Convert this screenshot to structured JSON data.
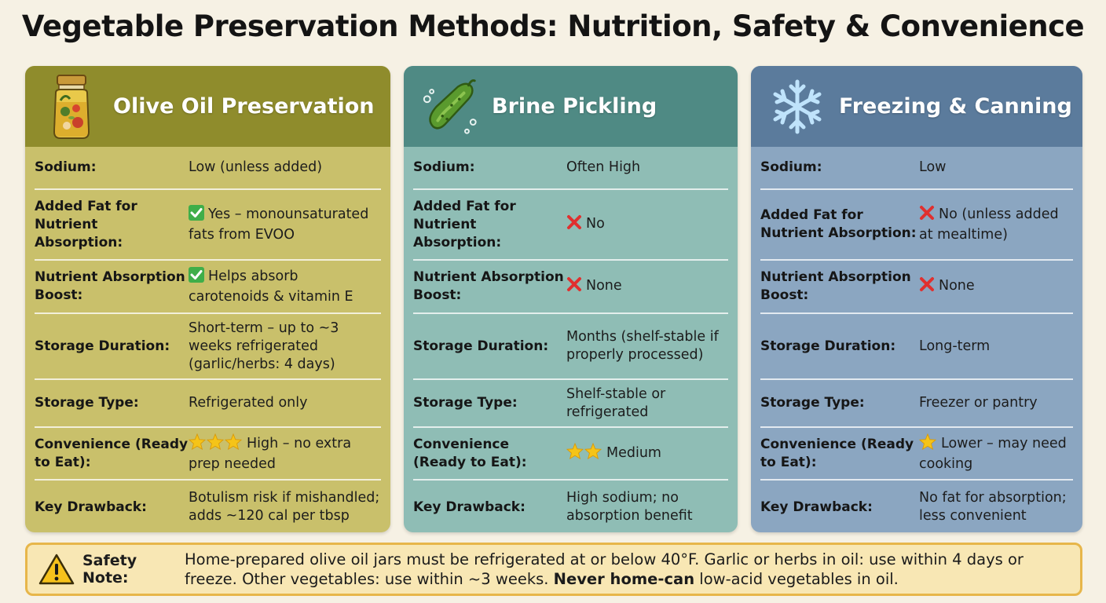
{
  "title": "Vegetable Preservation Methods: Nutrition, Safety & Convenience",
  "labels": {
    "sodium": "Sodium:",
    "added_fat": "Added Fat for Nutrient Absorption:",
    "boost": "Nutrient Absorption Boost:",
    "duration": "Storage Duration:",
    "type": "Storage Type:",
    "convenience": "Convenience (Ready to Eat):",
    "drawback": "Key Drawback:"
  },
  "cards": {
    "olive": {
      "title": "Olive Oil Preservation",
      "icon": "olive-oil-jar-icon",
      "header_color": "#8f8c2c",
      "body_color": "#c9c06b",
      "sodium": "Low (unless added)",
      "added_fat": "Yes – monounsaturated fats from EVOO",
      "added_fat_mark": "check",
      "boost": "Helps absorb carotenoids & vitamin E",
      "boost_mark": "check",
      "duration": "Short-term – up to ~3 weeks refrigerated (garlic/herbs: 4 days)",
      "type": "Refrigerated only",
      "convenience": "High – no extra prep needed",
      "convenience_stars": 3,
      "drawback": "Botulism risk if mishandled; adds ~120 cal per tbsp"
    },
    "brine": {
      "title": "Brine Pickling",
      "icon": "pickle-icon",
      "header_color": "#4f8a84",
      "body_color": "#8fbdb5",
      "sodium": "Often High",
      "added_fat": "No",
      "added_fat_mark": "cross",
      "boost": "None",
      "boost_mark": "cross",
      "duration": "Months (shelf-stable if properly processed)",
      "type": "Shelf-stable or refrigerated",
      "convenience": "Medium",
      "convenience_stars": 2,
      "drawback": "High sodium; no absorption benefit"
    },
    "freeze": {
      "title": "Freezing & Canning",
      "icon": "snowflake-icon",
      "header_color": "#5b7b9c",
      "body_color": "#8ba6c1",
      "sodium": "Low",
      "added_fat": "No (unless added at mealtime)",
      "added_fat_mark": "cross",
      "boost": "None",
      "boost_mark": "cross",
      "duration": "Long-term",
      "type": "Freezer or pantry",
      "convenience": "Lower – may need cooking",
      "convenience_stars": 1,
      "drawback": "No fat for absorption; less convenient"
    }
  },
  "safety_note": {
    "icon": "warning-icon",
    "label": "Safety Note:",
    "text_before": "Home-prepared olive oil jars must be refrigerated at or below 40°F. Garlic or herbs in oil: use within 4 days or freeze. Other vegetables: use within ~3 weeks.",
    "bold": "Never home-can",
    "text_after": "low-acid vegetables in oil."
  },
  "colors": {
    "check": "#3fae49",
    "cross": "#e0302f",
    "star": "#f5c418",
    "note_border": "#e7b64a",
    "note_bg": "#f8e7b4"
  }
}
